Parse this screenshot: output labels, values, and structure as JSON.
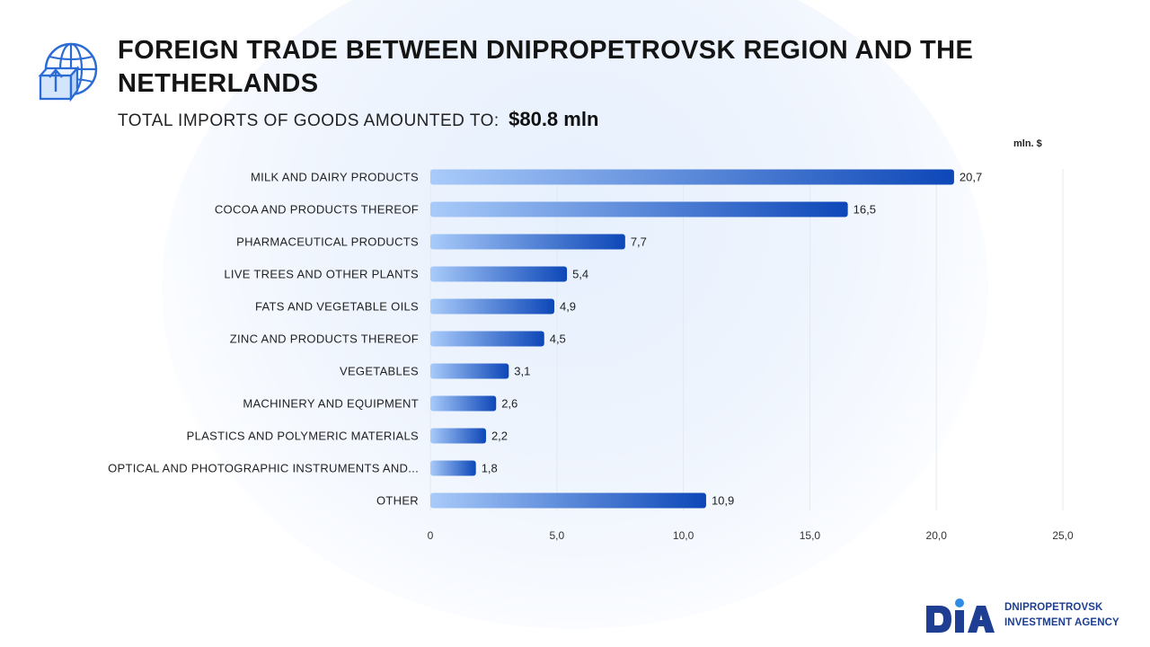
{
  "header": {
    "title": "FOREIGN TRADE BETWEEN DNIPROPETROVSK REGION AND THE NETHERLANDS",
    "subtitle": "TOTAL IMPORTS OF GOODS AMOUNTED TO:",
    "total": "$80.8  mln",
    "icon": "globe-box-upload-icon"
  },
  "unit_label": "mln. $",
  "colors": {
    "bar_start": "#a9cbfa",
    "bar_end": "#0d47b8",
    "grid": "#e6e9ef",
    "logo_blue": "#1d3e92"
  },
  "logo": {
    "mark": "DIA",
    "line1": "DNIPROPETROVSK",
    "line2": "INVESTMENT AGENCY"
  },
  "chart_data": {
    "type": "bar",
    "orientation": "horizontal",
    "title": "",
    "xlabel": "",
    "ylabel": "",
    "unit": "mln. $",
    "categories": [
      "MILK AND DAIRY PRODUCTS",
      "COCOA AND PRODUCTS THEREOF",
      "PHARMACEUTICAL PRODUCTS",
      "LIVE TREES AND OTHER PLANTS",
      "FATS AND VEGETABLE OILS",
      "ZINC AND PRODUCTS THEREOF",
      "VEGETABLES",
      "MACHINERY AND EQUIPMENT",
      "PLASTICS AND POLYMERIC MATERIALS",
      "OPTICAL AND PHOTOGRAPHIC INSTRUMENTS AND...",
      "OTHER"
    ],
    "values": [
      20.7,
      16.5,
      7.7,
      5.4,
      4.9,
      4.5,
      3.1,
      2.6,
      2.2,
      1.8,
      10.9
    ],
    "value_labels": [
      "20,7",
      "16,5",
      "7,7",
      "5,4",
      "4,9",
      "4,5",
      "3,1",
      "2,6",
      "2,2",
      "1,8",
      "10,9"
    ],
    "xlim": [
      0,
      25
    ],
    "xticks": [
      0,
      5,
      10,
      15,
      20,
      25
    ],
    "xtick_labels": [
      "0",
      "5,0",
      "10,0",
      "15,0",
      "20,0",
      "25,0"
    ],
    "grid": true,
    "legend": "none"
  }
}
